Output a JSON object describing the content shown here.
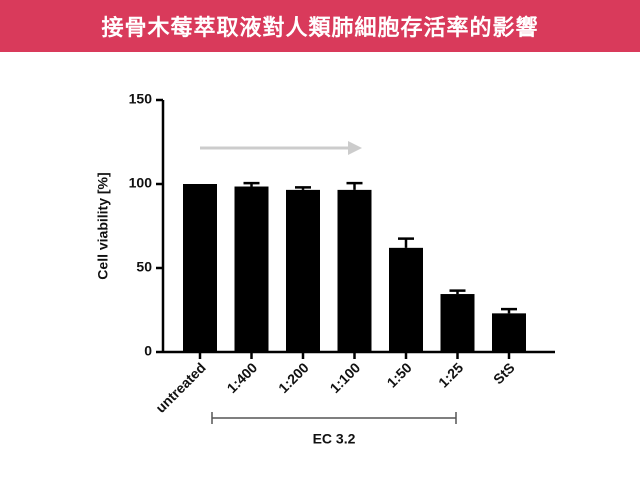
{
  "header": {
    "title": "接骨木莓萃取液對人類肺細胞存活率的影響"
  },
  "chart_data": {
    "type": "bar",
    "ylabel": "Cell viability [%]",
    "categories": [
      "untreated",
      "1:400",
      "1:200",
      "1:100",
      "1:50",
      "1:25",
      "StS"
    ],
    "values": [
      100,
      98.5,
      96.5,
      96.5,
      62,
      34.5,
      23
    ],
    "errors": [
      0,
      2,
      1.5,
      4,
      5.5,
      2,
      2.5
    ],
    "color": "#000000",
    "ylim": [
      0,
      150
    ],
    "yticks": [
      0,
      50,
      100,
      150
    ],
    "annotation": "EC 3.2"
  }
}
